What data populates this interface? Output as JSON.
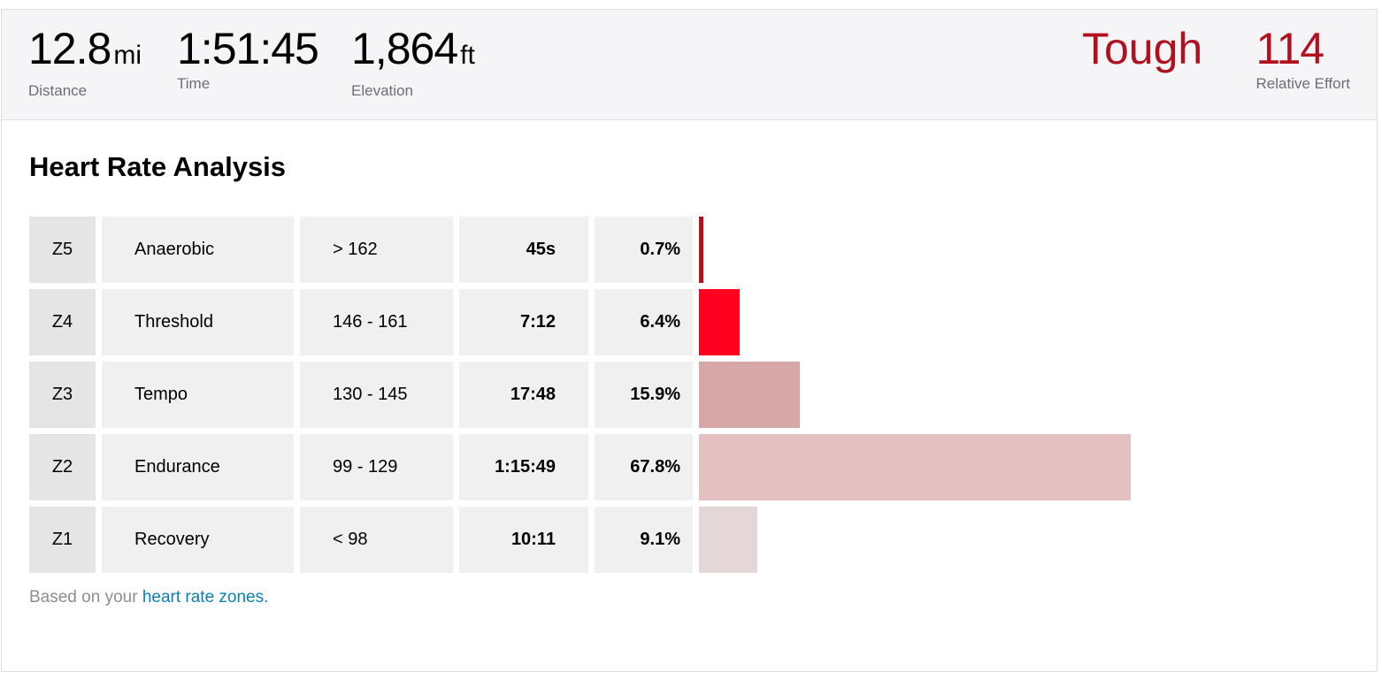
{
  "stats": [
    {
      "value": "12.8",
      "unit": "mi",
      "label": "Distance"
    },
    {
      "value": "1:51:45",
      "unit": "",
      "label": "Time"
    },
    {
      "value": "1,864",
      "unit": "ft",
      "label": "Elevation"
    }
  ],
  "effort": {
    "word": "Tough",
    "value": "114",
    "label": "Relative Effort",
    "color": "#b0101f"
  },
  "section_title": "Heart Rate Analysis",
  "zones": [
    {
      "zone": "Z5",
      "name": "Anaerobic",
      "range": "> 162",
      "time": "45s",
      "percent": "0.7%",
      "pct": 0.7,
      "color": "#b0101f"
    },
    {
      "zone": "Z4",
      "name": "Threshold",
      "range": "146 - 161",
      "time": "7:12",
      "percent": "6.4%",
      "pct": 6.4,
      "color": "#ff0020"
    },
    {
      "zone": "Z3",
      "name": "Tempo",
      "range": "130 - 145",
      "time": "17:48",
      "percent": "15.9%",
      "pct": 15.9,
      "color": "#d7a6a7"
    },
    {
      "zone": "Z2",
      "name": "Endurance",
      "range": "99 - 129",
      "time": "1:15:49",
      "percent": "67.8%",
      "pct": 67.8,
      "color": "#e5c0c1"
    },
    {
      "zone": "Z1",
      "name": "Recovery",
      "range": "< 98",
      "time": "10:11",
      "percent": "9.1%",
      "pct": 9.1,
      "color": "#e5d7d8"
    }
  ],
  "footnote": {
    "prefix": "Based on your ",
    "link_text": "heart rate zones."
  }
}
